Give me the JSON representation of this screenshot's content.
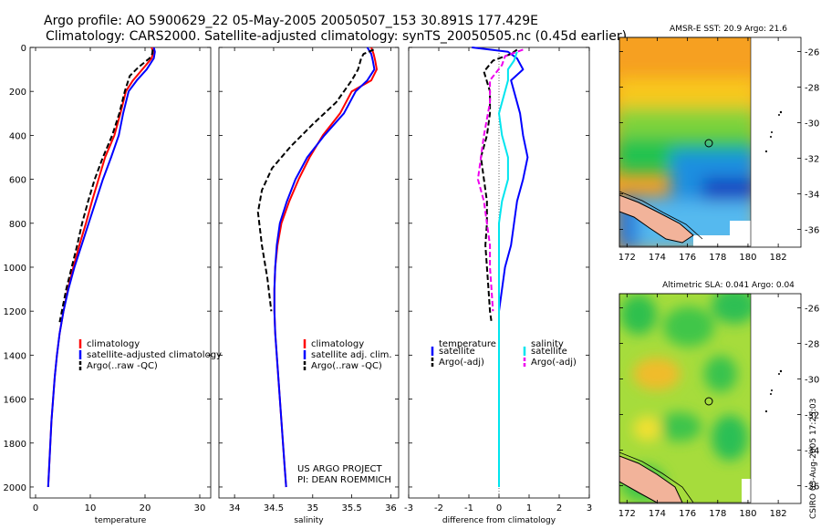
{
  "header": {
    "title_line1": "Argo profile: AO 5900629_22 05-May-2005 20050507_153 30.891S 177.429E",
    "title_line2": "Climatology: CARS2000. Satellite-adjusted climatology: synTS_20050505.nc (0.45d earlier)"
  },
  "credits": {
    "project": "US ARGO PROJECT",
    "pi": "PI: DEAN ROEMMICH",
    "stamp": "CSIRO 03-Aug-2005 17:25:03"
  },
  "colors": {
    "climatology": "#ff0000",
    "satellite": "#0000ff",
    "argo": "#000000",
    "satellite_salinity": "#00e5ee",
    "argo_salinity": "#ee00ee"
  },
  "chart_data": [
    {
      "type": "line",
      "id": "temperature",
      "xlabel": "temperature",
      "ylabel": "",
      "xlim": [
        -1,
        32
      ],
      "ylim": [
        2050,
        0
      ],
      "xticks": [
        0,
        10,
        20,
        30
      ],
      "xtick_labels": [
        "0",
        "10",
        "20",
        "30"
      ],
      "yticks": [
        0,
        200,
        400,
        600,
        800,
        1000,
        1200,
        1400,
        1600,
        1800,
        2000
      ],
      "ytick_labels": [
        "0",
        "200",
        "400",
        "600",
        "800",
        "1000",
        "1200",
        "1400",
        "1600",
        "1800",
        "2000"
      ],
      "legend": [
        "climatology",
        "satellite-adjusted climatology",
        "Argo(..raw -QC)"
      ],
      "series": [
        {
          "name": "climatology",
          "color": "#ff0000",
          "dash": "",
          "points": [
            [
              21.2,
              0
            ],
            [
              21.5,
              20
            ],
            [
              21.2,
              50
            ],
            [
              19.5,
              100
            ],
            [
              17.8,
              150
            ],
            [
              16.5,
              200
            ],
            [
              15.5,
              300
            ],
            [
              14.4,
              400
            ],
            [
              12.7,
              500
            ],
            [
              11.5,
              600
            ],
            [
              10.3,
              700
            ],
            [
              9.2,
              800
            ],
            [
              8,
              900
            ],
            [
              6.9,
              1000
            ],
            [
              5.9,
              1100
            ],
            [
              5.1,
              1200
            ],
            [
              4.4,
              1300
            ],
            [
              3.9,
              1400
            ],
            [
              3.5,
              1500
            ],
            [
              3.2,
              1600
            ],
            [
              2.9,
              1700
            ],
            [
              2.7,
              1800
            ],
            [
              2.5,
              1900
            ],
            [
              2.3,
              2000
            ]
          ]
        },
        {
          "name": "satellite-adjusted climatology",
          "color": "#0000ff",
          "dash": "",
          "points": [
            [
              21.6,
              0
            ],
            [
              21.8,
              20
            ],
            [
              21.6,
              50
            ],
            [
              20.3,
              100
            ],
            [
              18.5,
              150
            ],
            [
              17,
              200
            ],
            [
              16,
              300
            ],
            [
              15.2,
              400
            ],
            [
              13.8,
              500
            ],
            [
              12.3,
              600
            ],
            [
              11,
              700
            ],
            [
              9.7,
              800
            ],
            [
              8.4,
              900
            ],
            [
              7.1,
              1000
            ],
            [
              6,
              1100
            ],
            [
              5.1,
              1200
            ],
            [
              4.4,
              1300
            ],
            [
              3.9,
              1400
            ],
            [
              3.5,
              1500
            ],
            [
              3.2,
              1600
            ],
            [
              2.9,
              1700
            ],
            [
              2.7,
              1800
            ],
            [
              2.5,
              1900
            ],
            [
              2.3,
              2000
            ]
          ]
        },
        {
          "name": "Argo(..raw -QC)",
          "color": "#000000",
          "dash": "6,3",
          "points": [
            [
              21.4,
              10
            ],
            [
              21.3,
              30
            ],
            [
              20.8,
              50
            ],
            [
              18.8,
              90
            ],
            [
              17.2,
              130
            ],
            [
              16.3,
              200
            ],
            [
              15.3,
              300
            ],
            [
              14,
              400
            ],
            [
              12.3,
              500
            ],
            [
              10.8,
              600
            ],
            [
              9.6,
              700
            ],
            [
              8.5,
              800
            ],
            [
              7.6,
              900
            ],
            [
              6.6,
              1000
            ],
            [
              5.6,
              1100
            ],
            [
              4.8,
              1200
            ],
            [
              4.4,
              1250
            ]
          ]
        }
      ]
    },
    {
      "type": "line",
      "id": "salinity",
      "xlabel": "salinity",
      "ylabel": "",
      "xlim": [
        33.8,
        36.1
      ],
      "ylim": [
        2050,
        0
      ],
      "xticks": [
        34,
        34.5,
        35,
        35.5,
        36
      ],
      "xtick_labels": [
        "34",
        "34.5",
        "35",
        "35.5",
        "36"
      ],
      "legend": [
        "climatology",
        "satellite adj. clim.",
        "Argo(..raw -QC)"
      ],
      "series": [
        {
          "name": "climatology",
          "color": "#ff0000",
          "dash": "",
          "points": [
            [
              35.75,
              0
            ],
            [
              35.78,
              30
            ],
            [
              35.8,
              60
            ],
            [
              35.82,
              100
            ],
            [
              35.75,
              150
            ],
            [
              35.5,
              200
            ],
            [
              35.35,
              300
            ],
            [
              35.13,
              400
            ],
            [
              34.96,
              500
            ],
            [
              34.82,
              600
            ],
            [
              34.7,
              700
            ],
            [
              34.6,
              800
            ],
            [
              34.55,
              900
            ],
            [
              34.52,
              1000
            ],
            [
              34.51,
              1100
            ],
            [
              34.51,
              1200
            ],
            [
              34.52,
              1300
            ],
            [
              34.54,
              1400
            ],
            [
              34.56,
              1500
            ],
            [
              34.58,
              1600
            ],
            [
              34.6,
              1700
            ],
            [
              34.62,
              1800
            ],
            [
              34.64,
              1900
            ],
            [
              34.66,
              2000
            ]
          ]
        },
        {
          "name": "satellite adj. clim.",
          "color": "#0000ff",
          "dash": "",
          "points": [
            [
              35.7,
              0
            ],
            [
              35.75,
              30
            ],
            [
              35.77,
              60
            ],
            [
              35.79,
              100
            ],
            [
              35.7,
              150
            ],
            [
              35.55,
              200
            ],
            [
              35.4,
              300
            ],
            [
              35.15,
              400
            ],
            [
              34.93,
              500
            ],
            [
              34.78,
              600
            ],
            [
              34.67,
              700
            ],
            [
              34.58,
              800
            ],
            [
              34.54,
              900
            ],
            [
              34.52,
              1000
            ],
            [
              34.51,
              1100
            ],
            [
              34.51,
              1200
            ],
            [
              34.52,
              1300
            ],
            [
              34.54,
              1400
            ],
            [
              34.56,
              1500
            ],
            [
              34.58,
              1600
            ],
            [
              34.6,
              1700
            ],
            [
              34.62,
              1800
            ],
            [
              34.64,
              1900
            ],
            [
              34.66,
              2000
            ]
          ]
        },
        {
          "name": "Argo(..raw -QC)",
          "color": "#000000",
          "dash": "6,3",
          "points": [
            [
              35.78,
              10
            ],
            [
              35.65,
              30
            ],
            [
              35.62,
              50
            ],
            [
              35.58,
              100
            ],
            [
              35.5,
              150
            ],
            [
              35.3,
              250
            ],
            [
              35.0,
              350
            ],
            [
              34.72,
              450
            ],
            [
              34.48,
              550
            ],
            [
              34.35,
              650
            ],
            [
              34.3,
              750
            ],
            [
              34.35,
              900
            ],
            [
              34.42,
              1050
            ],
            [
              34.47,
              1200
            ]
          ]
        }
      ]
    },
    {
      "type": "line",
      "id": "difference",
      "xlabel": "difference from climatology",
      "ylabel": "",
      "xlim": [
        -3,
        3
      ],
      "ylim": [
        2050,
        0
      ],
      "xticks": [
        -3,
        -2,
        -1,
        0,
        1,
        2,
        3
      ],
      "xtick_labels": [
        "-3",
        "-2",
        "-1",
        "0",
        "1",
        "2",
        "3"
      ],
      "legend_left_title": "temperature",
      "legend_right_title": "salinity",
      "legend": [
        "satellite",
        "Argo(-adj)",
        "satellite",
        "Argo(-adj)"
      ],
      "series": [
        {
          "name": "temperature satellite",
          "color": "#0000ff",
          "dash": "",
          "points": [
            [
              -0.9,
              0
            ],
            [
              0.3,
              20
            ],
            [
              0.6,
              50
            ],
            [
              0.8,
              100
            ],
            [
              0.4,
              150
            ],
            [
              0.5,
              200
            ],
            [
              0.7,
              300
            ],
            [
              0.8,
              400
            ],
            [
              0.95,
              500
            ],
            [
              0.8,
              600
            ],
            [
              0.6,
              700
            ],
            [
              0.5,
              800
            ],
            [
              0.4,
              900
            ],
            [
              0.2,
              1000
            ],
            [
              0.1,
              1100
            ],
            [
              0.0,
              1200
            ],
            [
              0.0,
              1400
            ],
            [
              0.0,
              2000
            ]
          ]
        },
        {
          "name": "temperature Argo(-adj)",
          "color": "#000000",
          "dash": "6,3",
          "points": [
            [
              0.6,
              10
            ],
            [
              0.4,
              30
            ],
            [
              -0.2,
              60
            ],
            [
              -0.5,
              110
            ],
            [
              -0.3,
              200
            ],
            [
              -0.3,
              300
            ],
            [
              -0.4,
              400
            ],
            [
              -0.6,
              500
            ],
            [
              -0.5,
              600
            ],
            [
              -0.4,
              700
            ],
            [
              -0.4,
              800
            ],
            [
              -0.45,
              900
            ],
            [
              -0.4,
              1000
            ],
            [
              -0.35,
              1100
            ],
            [
              -0.3,
              1200
            ],
            [
              -0.25,
              1250
            ]
          ]
        },
        {
          "name": "salinity satellite",
          "color": "#00e5ee",
          "dash": "",
          "points": [
            [
              0.6,
              20
            ],
            [
              0.5,
              60
            ],
            [
              0.3,
              100
            ],
            [
              0.3,
              150
            ],
            [
              0.1,
              250
            ],
            [
              0.0,
              300
            ],
            [
              0.1,
              400
            ],
            [
              0.3,
              500
            ],
            [
              0.3,
              600
            ],
            [
              0.1,
              700
            ],
            [
              0.0,
              800
            ],
            [
              0.0,
              1000
            ],
            [
              0.0,
              2000
            ]
          ]
        },
        {
          "name": "salinity Argo(-adj)",
          "color": "#ee00ee",
          "dash": "6,3",
          "points": [
            [
              0.8,
              10
            ],
            [
              0.2,
              40
            ],
            [
              0.1,
              80
            ],
            [
              -0.3,
              150
            ],
            [
              -0.3,
              250
            ],
            [
              -0.5,
              400
            ],
            [
              -0.6,
              500
            ],
            [
              -0.7,
              600
            ],
            [
              -0.5,
              700
            ],
            [
              -0.4,
              800
            ],
            [
              -0.3,
              900
            ],
            [
              -0.3,
              1000
            ],
            [
              -0.25,
              1100
            ],
            [
              -0.2,
              1200
            ]
          ]
        }
      ]
    },
    {
      "type": "heatmap",
      "id": "sst-map",
      "title": "AMSR-E SST: 20.9 Argo: 21.6",
      "xlim": [
        171.5,
        183.5
      ],
      "ylim": [
        -37,
        -25.2
      ],
      "xticks": [
        172,
        174,
        176,
        178,
        180,
        182
      ],
      "xtick_labels": [
        "172",
        "174",
        "176",
        "178",
        "180",
        "182"
      ],
      "yticks": [
        -26,
        -28,
        -30,
        -32,
        -34,
        -36
      ],
      "ytick_labels": [
        "-26",
        "-28",
        "-30",
        "-32",
        "-34",
        "-36"
      ],
      "argo_position": [
        177.43,
        -30.89
      ]
    },
    {
      "type": "heatmap",
      "id": "sla-map",
      "title": "Altimetric SLA: 0.041 Argo: 0.04",
      "xlim": [
        171.5,
        183.5
      ],
      "ylim": [
        -37,
        -25.2
      ],
      "xticks": [
        172,
        174,
        176,
        178,
        180,
        182
      ],
      "xtick_labels": [
        "172",
        "174",
        "176",
        "178",
        "180",
        "182"
      ],
      "yticks": [
        -26,
        -28,
        -30,
        -32,
        -34,
        -36
      ],
      "ytick_labels": [
        "-26",
        "-28",
        "-30",
        "-32",
        "-34",
        "-36"
      ],
      "argo_position": [
        177.43,
        -30.89
      ]
    }
  ]
}
